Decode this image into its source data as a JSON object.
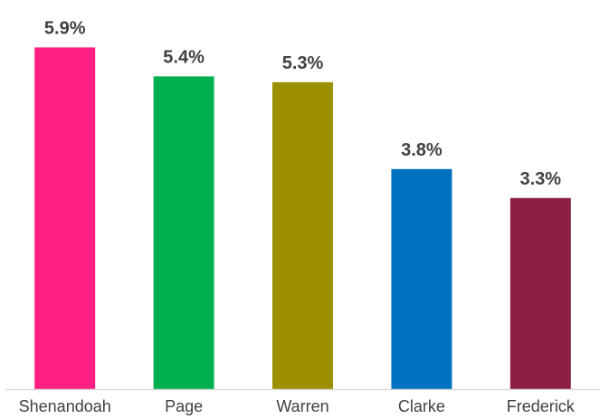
{
  "chart_data": {
    "type": "bar",
    "categories": [
      "Shenandoah",
      "Page",
      "Warren",
      "Clarke",
      "Frederick"
    ],
    "values": [
      5.9,
      5.4,
      5.3,
      3.8,
      3.3
    ],
    "data_labels": [
      "5.9%",
      "5.4%",
      "5.3%",
      "3.8%",
      "3.3%"
    ],
    "colors": [
      "#FF1F83",
      "#00B04F",
      "#9C8F00",
      "#0070C0",
      "#8B2044"
    ],
    "axis_color": "#D9D9D9",
    "text_color": "#404040",
    "title": "",
    "xlabel": "",
    "ylabel": "",
    "ylim": [
      0,
      7.5
    ],
    "grid": false,
    "legend": "none"
  }
}
